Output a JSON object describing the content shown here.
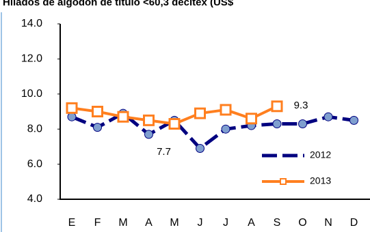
{
  "chart_data": {
    "type": "line",
    "title": "Hilados de algodón de título <60,3 decitex (US$",
    "categories": [
      "E",
      "F",
      "M",
      "A",
      "M",
      "J",
      "J",
      "A",
      "S",
      "O",
      "N",
      "D"
    ],
    "series": [
      {
        "name": "2012",
        "color": "#000080",
        "marker_color": "#7f9fcf",
        "values": [
          8.7,
          8.1,
          8.9,
          7.7,
          8.5,
          6.9,
          8.0,
          8.2,
          8.3,
          8.3,
          8.7,
          8.5
        ],
        "value_labels": [
          null,
          null,
          null,
          "7.7",
          null,
          null,
          null,
          null,
          null,
          null,
          null,
          null
        ]
      },
      {
        "name": "2013",
        "color": "#ff7f1f",
        "marker_color": "#ffffff",
        "values": [
          9.2,
          9.0,
          8.7,
          8.5,
          8.3,
          8.9,
          9.1,
          8.6,
          9.3,
          null,
          null,
          null
        ],
        "value_labels": [
          null,
          null,
          null,
          null,
          null,
          null,
          null,
          null,
          "9.3",
          null,
          null,
          null
        ]
      }
    ],
    "ylim": [
      4.0,
      14.0
    ],
    "yticks": [
      {
        "value": 4,
        "label": "4.0"
      },
      {
        "value": 6,
        "label": "6.0"
      },
      {
        "value": 8,
        "label": "8.0"
      },
      {
        "value": 10,
        "label": "10.0"
      },
      {
        "value": 12,
        "label": "12.0"
      },
      {
        "value": 14,
        "label": "14.0"
      }
    ],
    "legend": "lower right"
  }
}
